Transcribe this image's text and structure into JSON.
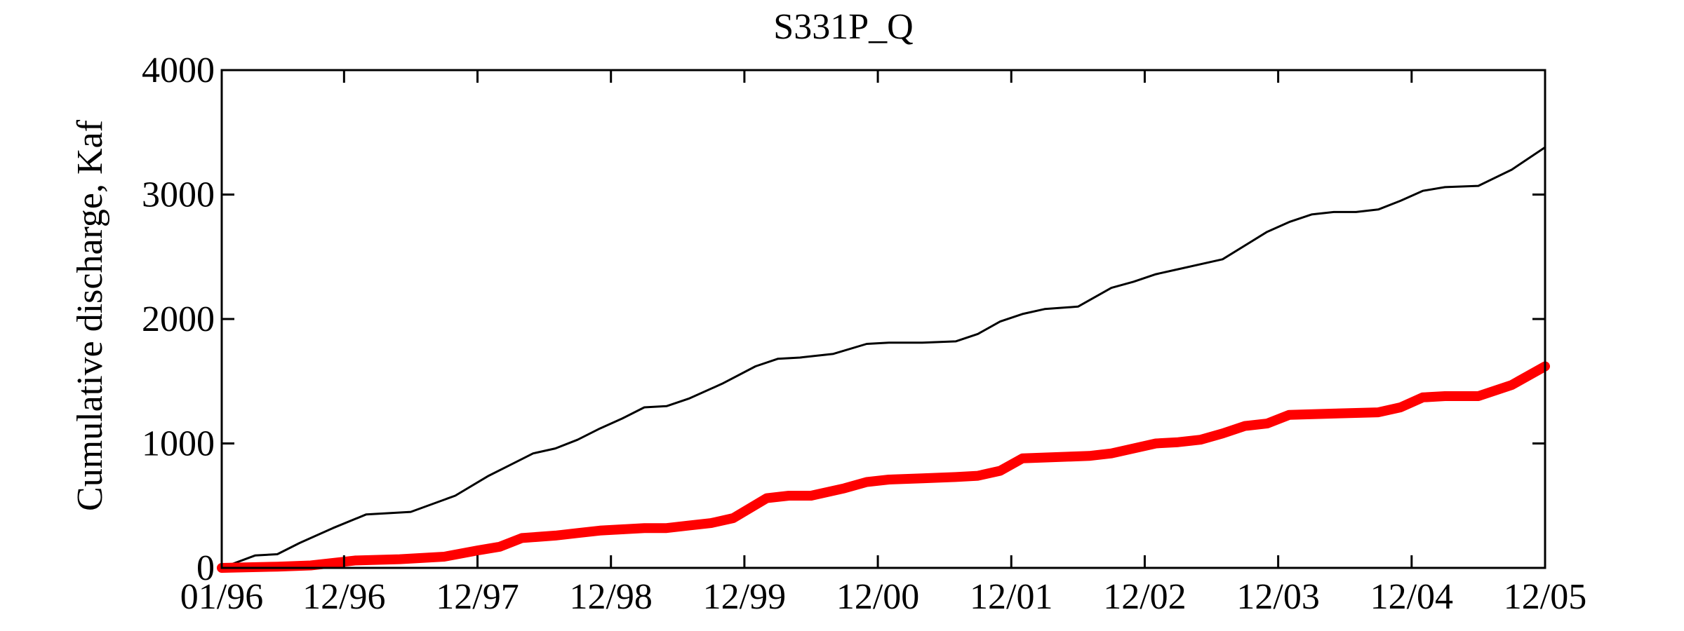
{
  "chart_data": {
    "type": "line",
    "title": "S331P_Q",
    "xlabel": "",
    "ylabel": "Cumulative discharge, Kaf",
    "ylim": [
      0,
      4000
    ],
    "yticks": [
      0,
      1000,
      2000,
      3000,
      4000
    ],
    "xlim": [
      0,
      119
    ],
    "xticks": [
      {
        "value": 0,
        "label": "01/96"
      },
      {
        "value": 11,
        "label": "12/96"
      },
      {
        "value": 23,
        "label": "12/97"
      },
      {
        "value": 35,
        "label": "12/98"
      },
      {
        "value": 47,
        "label": "12/99"
      },
      {
        "value": 59,
        "label": "12/00"
      },
      {
        "value": 71,
        "label": "12/01"
      },
      {
        "value": 83,
        "label": "12/02"
      },
      {
        "value": 95,
        "label": "12/03"
      },
      {
        "value": 107,
        "label": "12/04"
      },
      {
        "value": 119,
        "label": "12/05"
      }
    ],
    "grid": false,
    "series": [
      {
        "color": "#000000",
        "style": "thin",
        "x": [
          0,
          3,
          5,
          7,
          10,
          13,
          17,
          21,
          24,
          26,
          28,
          30,
          32,
          34,
          36,
          38,
          40,
          42,
          45,
          48,
          50,
          52,
          55,
          58,
          60,
          63,
          66,
          68,
          70,
          72,
          74,
          77,
          80,
          82,
          84,
          86,
          90,
          94,
          96,
          98,
          100,
          102,
          104,
          106,
          108,
          110,
          113,
          116,
          119
        ],
        "y": [
          0,
          100,
          110,
          200,
          320,
          430,
          450,
          580,
          740,
          830,
          920,
          960,
          1030,
          1120,
          1200,
          1290,
          1300,
          1360,
          1480,
          1620,
          1680,
          1690,
          1720,
          1800,
          1810,
          1810,
          1820,
          1880,
          1980,
          2040,
          2080,
          2100,
          2250,
          2300,
          2360,
          2400,
          2480,
          2700,
          2780,
          2840,
          2860,
          2860,
          2880,
          2950,
          3030,
          3060,
          3070,
          3200,
          3380
        ]
      },
      {
        "color": "#ff0000",
        "style": "thick",
        "x": [
          0,
          5,
          8,
          12,
          16,
          20,
          23,
          25,
          27,
          30,
          32,
          34,
          36,
          38,
          40,
          42,
          44,
          46,
          49,
          51,
          53,
          56,
          58,
          60,
          63,
          66,
          68,
          70,
          72,
          75,
          78,
          80,
          84,
          86,
          88,
          90,
          92,
          94,
          96,
          100,
          104,
          106,
          108,
          110,
          113,
          116,
          119
        ],
        "y": [
          0,
          10,
          20,
          60,
          70,
          90,
          140,
          170,
          240,
          260,
          280,
          300,
          310,
          320,
          320,
          340,
          360,
          400,
          560,
          580,
          580,
          640,
          690,
          710,
          720,
          730,
          740,
          780,
          880,
          890,
          900,
          920,
          1000,
          1010,
          1030,
          1080,
          1140,
          1160,
          1230,
          1240,
          1250,
          1290,
          1370,
          1380,
          1380,
          1470,
          1620
        ]
      }
    ]
  }
}
